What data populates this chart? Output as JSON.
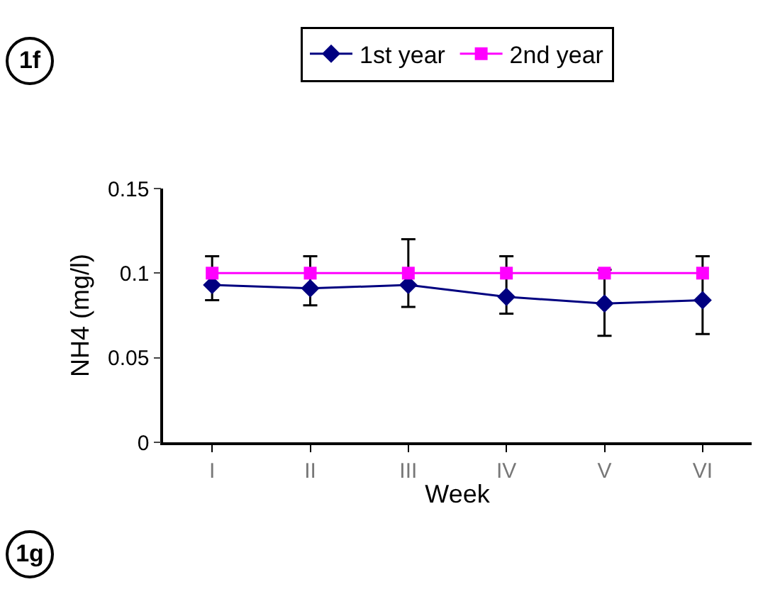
{
  "chart_data": {
    "type": "line",
    "xlabel": "Week",
    "ylabel": "NH4 (mg/l)",
    "categories": [
      "I",
      "II",
      "III",
      "IV",
      "V",
      "VI"
    ],
    "series": [
      {
        "name": "1st year",
        "color": "#000080",
        "marker": "diamond",
        "values": [
          0.093,
          0.091,
          0.093,
          0.086,
          0.082,
          0.084
        ],
        "errors": [
          [
            0.084,
            0.11
          ],
          [
            0.081,
            0.11
          ],
          [
            0.08,
            0.12
          ],
          [
            0.076,
            0.11
          ],
          [
            0.063,
            0.102
          ],
          [
            0.064,
            0.11
          ]
        ]
      },
      {
        "name": "2nd year",
        "color": "#ff00ff",
        "marker": "square",
        "values": [
          0.1,
          0.1,
          0.1,
          0.1,
          0.1,
          0.1
        ]
      }
    ],
    "ylim": [
      0,
      0.15
    ],
    "yticks": [
      0,
      0.05,
      0.1,
      0.15
    ],
    "grid": false,
    "legend": "top",
    "annotations": [
      "1f",
      "1g"
    ]
  }
}
